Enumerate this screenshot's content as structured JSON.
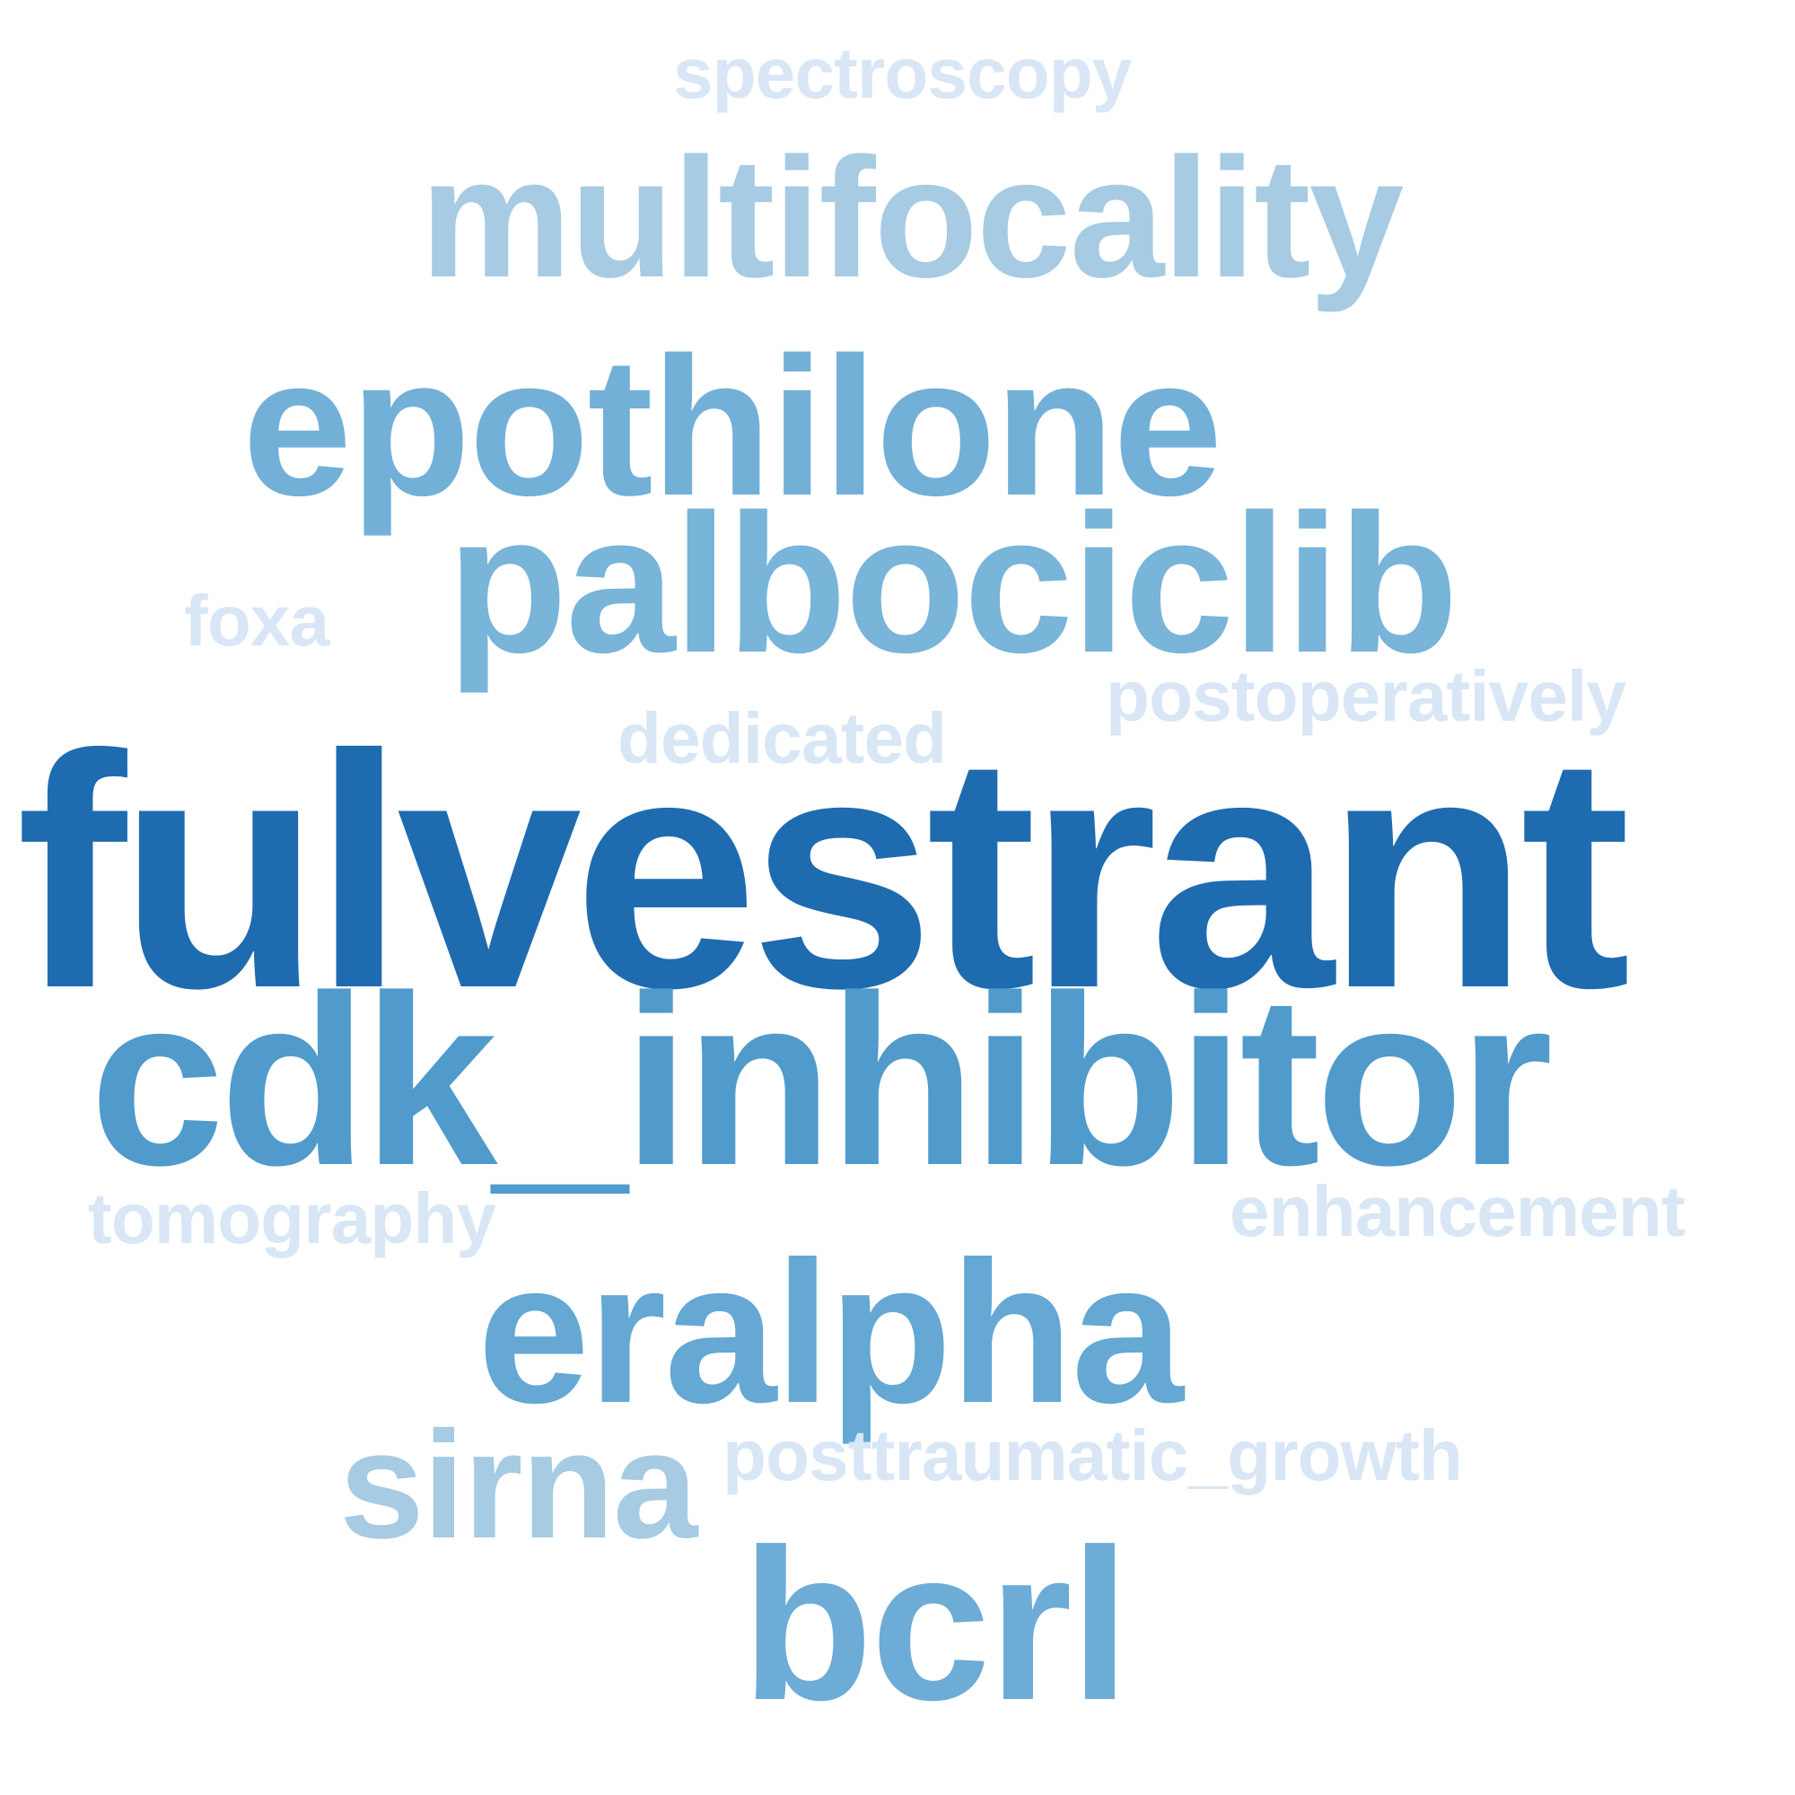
{
  "wordcloud": {
    "words": [
      {
        "id": "spectroscopy",
        "text": "spectroscopy",
        "color": "#d8e6f5"
      },
      {
        "id": "multifocality",
        "text": "multifocality",
        "color": "#a6cbe2"
      },
      {
        "id": "epothilone",
        "text": "epothilone",
        "color": "#72b0d8"
      },
      {
        "id": "palbociclib",
        "text": "palbociclib",
        "color": "#79b4d9"
      },
      {
        "id": "foxa",
        "text": "foxa",
        "color": "#d8e6f5"
      },
      {
        "id": "postoperatively",
        "text": "postoperatively",
        "color": "#d8e6f5"
      },
      {
        "id": "dedicated",
        "text": "dedicated",
        "color": "#d8e6f5"
      },
      {
        "id": "fulvestrant",
        "text": "fulvestrant",
        "color": "#1f6bb0"
      },
      {
        "id": "cdk_inhibitor",
        "text": "cdk_inhibitor",
        "color": "#509bcb"
      },
      {
        "id": "tomography",
        "text": "tomography",
        "color": "#d8e6f5"
      },
      {
        "id": "enhancement",
        "text": "enhancement",
        "color": "#d8e6f5"
      },
      {
        "id": "eralpha",
        "text": "eralpha",
        "color": "#64a8d3"
      },
      {
        "id": "sirna",
        "text": "sirna",
        "color": "#a6cbe2"
      },
      {
        "id": "posttraumatic_growth",
        "text": "posttraumatic_growth",
        "color": "#d8e6f5"
      },
      {
        "id": "bcrl",
        "text": "bcrl",
        "color": "#6dacd6"
      }
    ]
  }
}
